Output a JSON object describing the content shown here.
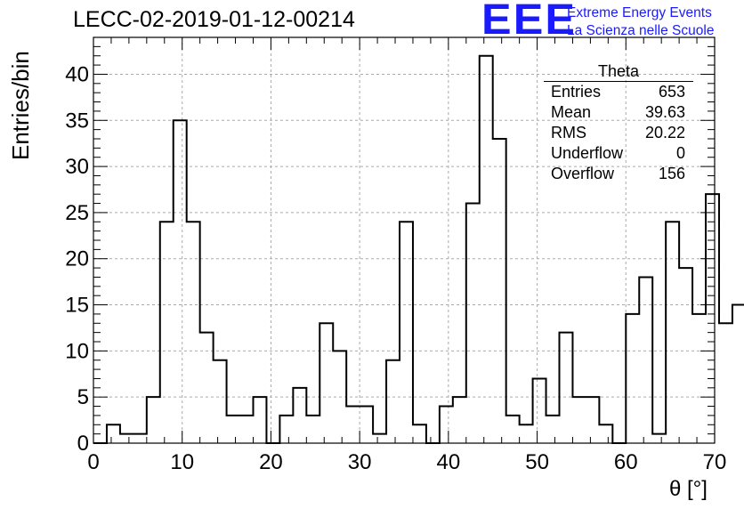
{
  "header": {
    "title": "LECC-02-2019-01-12-00214",
    "logo_text": "EEE",
    "logo_line1": "Extreme Energy Events",
    "logo_line2": "La Scienza nelle Scuole",
    "logo_color": "#1a1aff"
  },
  "stats": {
    "name": "Theta",
    "rows": [
      {
        "label": "Entries",
        "value": "653"
      },
      {
        "label": "Mean",
        "value": "39.63"
      },
      {
        "label": "RMS",
        "value": "20.22"
      },
      {
        "label": "Underflow",
        "value": "0"
      },
      {
        "label": "Overflow",
        "value": "156"
      }
    ]
  },
  "chart_data": {
    "type": "bar",
    "title": "LECC-02-2019-01-12-00214",
    "xlabel": "θ [°]",
    "ylabel": "Entries/bin",
    "xlim": [
      0,
      70
    ],
    "ylim": [
      0,
      44
    ],
    "grid": true,
    "bin_width": 1.5,
    "bin_start": 0,
    "values": [
      0,
      2,
      1,
      1,
      5,
      24,
      35,
      24,
      12,
      9,
      3,
      3,
      5,
      0,
      3,
      6,
      3,
      13,
      10,
      4,
      4,
      1,
      9,
      24,
      2,
      0,
      4,
      5,
      26,
      42,
      33,
      3,
      2,
      7,
      3,
      12,
      5,
      5,
      2,
      0,
      14,
      18,
      1,
      24,
      19,
      14,
      27,
      13,
      15
    ],
    "x_ticks": [
      "0",
      "10",
      "20",
      "30",
      "40",
      "50",
      "60",
      "70"
    ],
    "y_ticks": [
      "0",
      "5",
      "10",
      "15",
      "20",
      "25",
      "30",
      "35",
      "40"
    ]
  }
}
